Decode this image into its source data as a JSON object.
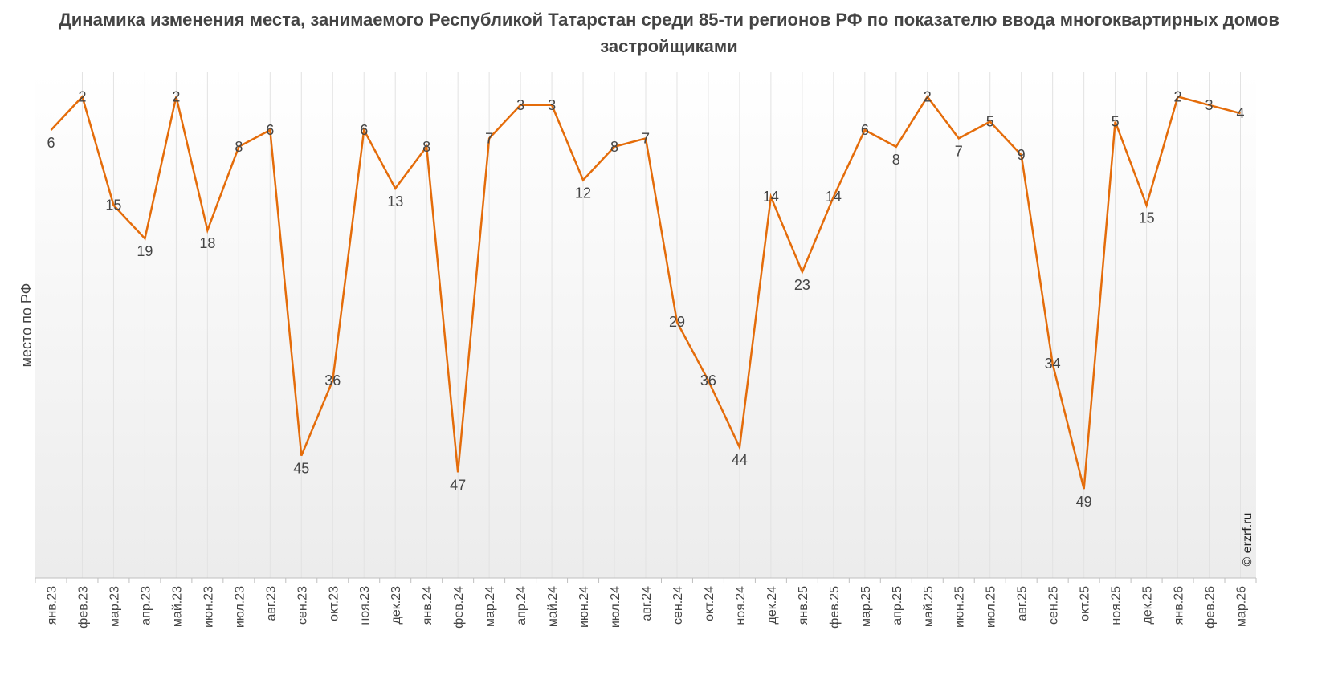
{
  "chart_data": {
    "type": "line",
    "title": "Динамика изменения места, занимаемого Республикой Татарстан среди 85-ти регионов РФ по показателю ввода многоквартирных домов застройщиками",
    "ylabel": "место по РФ",
    "xlabel": "",
    "y_inverted": true,
    "ylim": [
      1,
      60
    ],
    "grid": "vertical",
    "color": "#E46C0A",
    "credit": "© erzrf.ru",
    "categories": [
      "янв.23",
      "фев.23",
      "мар.23",
      "апр.23",
      "май.23",
      "июн.23",
      "июл.23",
      "авг.23",
      "сен.23",
      "окт.23",
      "ноя.23",
      "дек.23",
      "янв.24",
      "фев.24",
      "мар.24",
      "апр.24",
      "май.24",
      "июн.24",
      "июл.24",
      "авг.24",
      "сен.24",
      "окт.24",
      "ноя.24",
      "дек.24",
      "янв.25",
      "фев.25",
      "мар.25",
      "апр.25",
      "май.25",
      "июн.25",
      "июл.25",
      "авг.25",
      "сен.25",
      "окт.25",
      "ноя.25",
      "дек.25",
      "янв.26",
      "фев.26",
      "мар.26"
    ],
    "values": [
      6,
      2,
      15,
      19,
      2,
      18,
      8,
      6,
      45,
      36,
      6,
      13,
      8,
      47,
      7,
      3,
      3,
      12,
      8,
      7,
      29,
      36,
      44,
      14,
      23,
      14,
      6,
      8,
      2,
      7,
      5,
      9,
      34,
      49,
      5,
      15,
      2,
      3,
      4
    ]
  }
}
